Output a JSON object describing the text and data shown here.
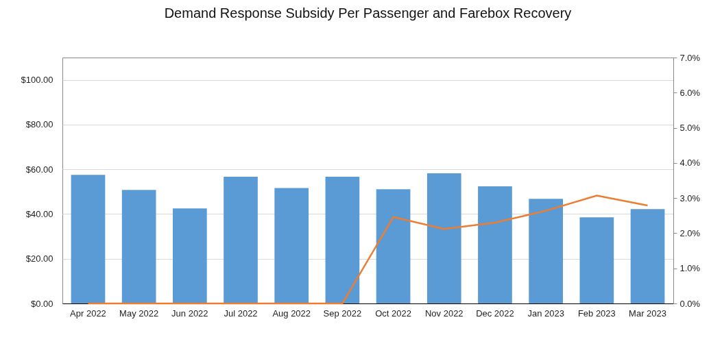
{
  "chart_data": {
    "type": "bar",
    "title": "Demand Response Subsidy Per Passenger and Farebox Recovery",
    "categories": [
      "Apr 2022",
      "May 2022",
      "Jun 2022",
      "Jul 2022",
      "Aug 2022",
      "Sep 2022",
      "Oct 2022",
      "Nov 2022",
      "Dec 2022",
      "Jan 2023",
      "Feb 2023",
      "Mar 2023"
    ],
    "series": [
      {
        "color": "#5b9bd5",
        "values": [
          57.5,
          50.8,
          42.5,
          56.7,
          51.6,
          56.7,
          51.1,
          58.2,
          52.4,
          46.8,
          38.5,
          42.2
        ]
      },
      {
        "type": "line",
        "axis": "y2",
        "color": "#ed7d31",
        "values": [
          0,
          0,
          0,
          0,
          0,
          0,
          2.46,
          2.12,
          2.3,
          2.64,
          3.07,
          2.79
        ]
      }
    ],
    "ylim": [
      0,
      110
    ],
    "yticks": [
      {
        "value": 0,
        "label": "$0.00"
      },
      {
        "value": 20,
        "label": "$20.00"
      },
      {
        "value": 40,
        "label": "$40.00"
      },
      {
        "value": 60,
        "label": "$60.00"
      },
      {
        "value": 80,
        "label": "$80.00"
      },
      {
        "value": 100,
        "label": "$100.00"
      }
    ],
    "y2lim": [
      0,
      7
    ],
    "y2ticks": [
      {
        "value": 0,
        "label": "0.0%"
      },
      {
        "value": 1,
        "label": "1.0%"
      },
      {
        "value": 2,
        "label": "2.0%"
      },
      {
        "value": 3,
        "label": "3.0%"
      },
      {
        "value": 4,
        "label": "4.0%"
      },
      {
        "value": 5,
        "label": "5.0%"
      },
      {
        "value": 6,
        "label": "6.0%"
      },
      {
        "value": 7,
        "label": "7.0%"
      }
    ],
    "grid": "y",
    "line_style": "solid"
  }
}
